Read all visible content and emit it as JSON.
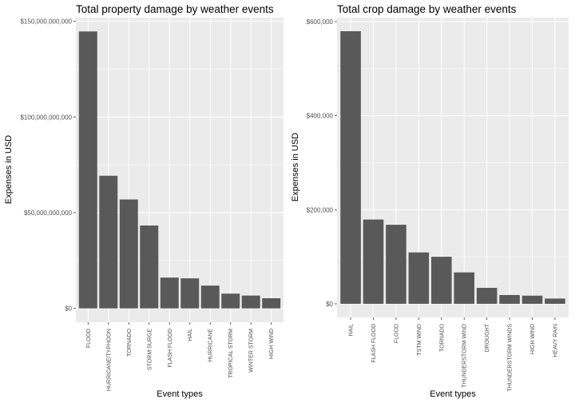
{
  "colors": {
    "panel_bg": "#ebebeb",
    "grid_major": "#ffffff",
    "bar_fill": "#595959",
    "tick": "#333333",
    "tick_text": "#4d4d4d"
  },
  "chart_data": [
    {
      "type": "bar",
      "title": "Total property damage by weather events",
      "xlabel": "Event types",
      "ylabel": "Expenses in USD",
      "categories": [
        "FLOOD",
        "HURRICANE/TYPHOON",
        "TORNADO",
        "STORM SURGE",
        "FLASH FLOOD",
        "HAIL",
        "HURRICANE",
        "TROPICAL STORM",
        "WINTER STORM",
        "HIGH WIND"
      ],
      "values": [
        144700000000,
        69300000000,
        56900000000,
        43300000000,
        16100000000,
        15700000000,
        11900000000,
        7700000000,
        6700000000,
        5300000000
      ],
      "ylim": [
        -7235000000,
        151935000000
      ],
      "yticks": [
        0,
        50000000000,
        100000000000,
        150000000000
      ],
      "ytick_labels": [
        "$0",
        "$50,000,000,000",
        "$100,000,000,000",
        "$150,000,000,000"
      ],
      "grid": true,
      "legend": "none"
    },
    {
      "type": "bar",
      "title": "Total crop damage by weather events",
      "xlabel": "Event types",
      "ylabel": "Expenses in USD",
      "categories": [
        "HAIL",
        "FLASH FLOOD",
        "FLOOD",
        "TSTM WIND",
        "TORNADO",
        "THUNDERSTORM WIND",
        "DROUGHT",
        "THUNDERSTORM WINDS",
        "HIGH WIND",
        "HEAVY RAIN"
      ],
      "values": [
        579596,
        179200,
        168038,
        109202,
        100019,
        66791,
        33899,
        18685,
        17283,
        11123
      ],
      "ylim": [
        -28980,
        608576
      ],
      "yticks": [
        0,
        200000,
        400000,
        600000
      ],
      "ytick_labels": [
        "$0",
        "$200,000",
        "$400,000",
        "$600,000"
      ],
      "grid": true,
      "legend": "none"
    }
  ]
}
